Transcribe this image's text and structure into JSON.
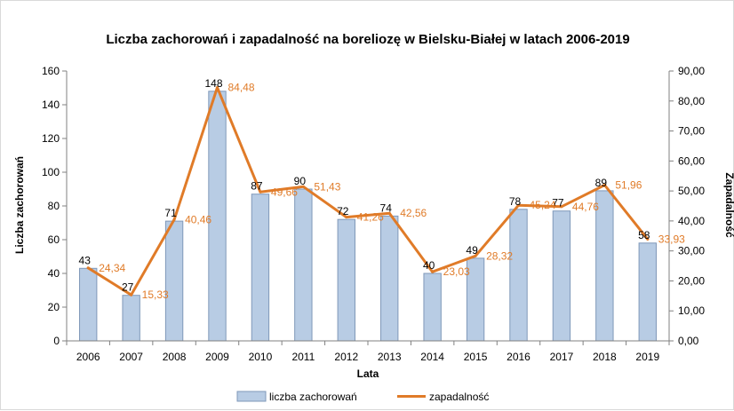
{
  "chart_data": {
    "type": "bar",
    "title": "Liczba zachorowań i zapadalność na boreliozę w Bielsku-Białej w latach 2006-2019",
    "xlabel": "Lata",
    "ylabel": "Liczba zachorowań",
    "y2label": "Zapadalność",
    "categories": [
      "2006",
      "2007",
      "2008",
      "2009",
      "2010",
      "2011",
      "2012",
      "2013",
      "2014",
      "2015",
      "2016",
      "2017",
      "2018",
      "2019"
    ],
    "ylim": [
      0,
      160
    ],
    "y2lim": [
      0,
      90
    ],
    "y_ticks": [
      "0",
      "20",
      "40",
      "60",
      "80",
      "100",
      "120",
      "140",
      "160"
    ],
    "y2_ticks": [
      "0,00",
      "10,00",
      "20,00",
      "30,00",
      "40,00",
      "50,00",
      "60,00",
      "70,00",
      "80,00",
      "90,00"
    ],
    "grid": false,
    "legend_position": "bottom",
    "series": [
      {
        "name": "liczba zachorowań",
        "type": "bar",
        "axis": "left",
        "color": "#b8cce4",
        "values": [
          43,
          27,
          71,
          148,
          87,
          90,
          72,
          74,
          40,
          49,
          78,
          77,
          89,
          58
        ],
        "labels": [
          "43",
          "27",
          "71",
          "148",
          "87",
          "90",
          "72",
          "74",
          "40",
          "49",
          "78",
          "77",
          "89",
          "58"
        ]
      },
      {
        "name": "zapadalność",
        "type": "line",
        "axis": "right",
        "color": "#e07b28",
        "values": [
          24.34,
          15.33,
          40.46,
          84.48,
          49.66,
          51.43,
          41.26,
          42.56,
          23.03,
          28.32,
          45.24,
          44.76,
          51.96,
          33.93
        ],
        "labels": [
          "24,34",
          "15,33",
          "40,46",
          "84,48",
          "49,66",
          "51,43",
          "41,26",
          "42,56",
          "23,03",
          "28,32",
          "45,24",
          "44,76",
          "51,96",
          "33,93"
        ]
      }
    ]
  }
}
